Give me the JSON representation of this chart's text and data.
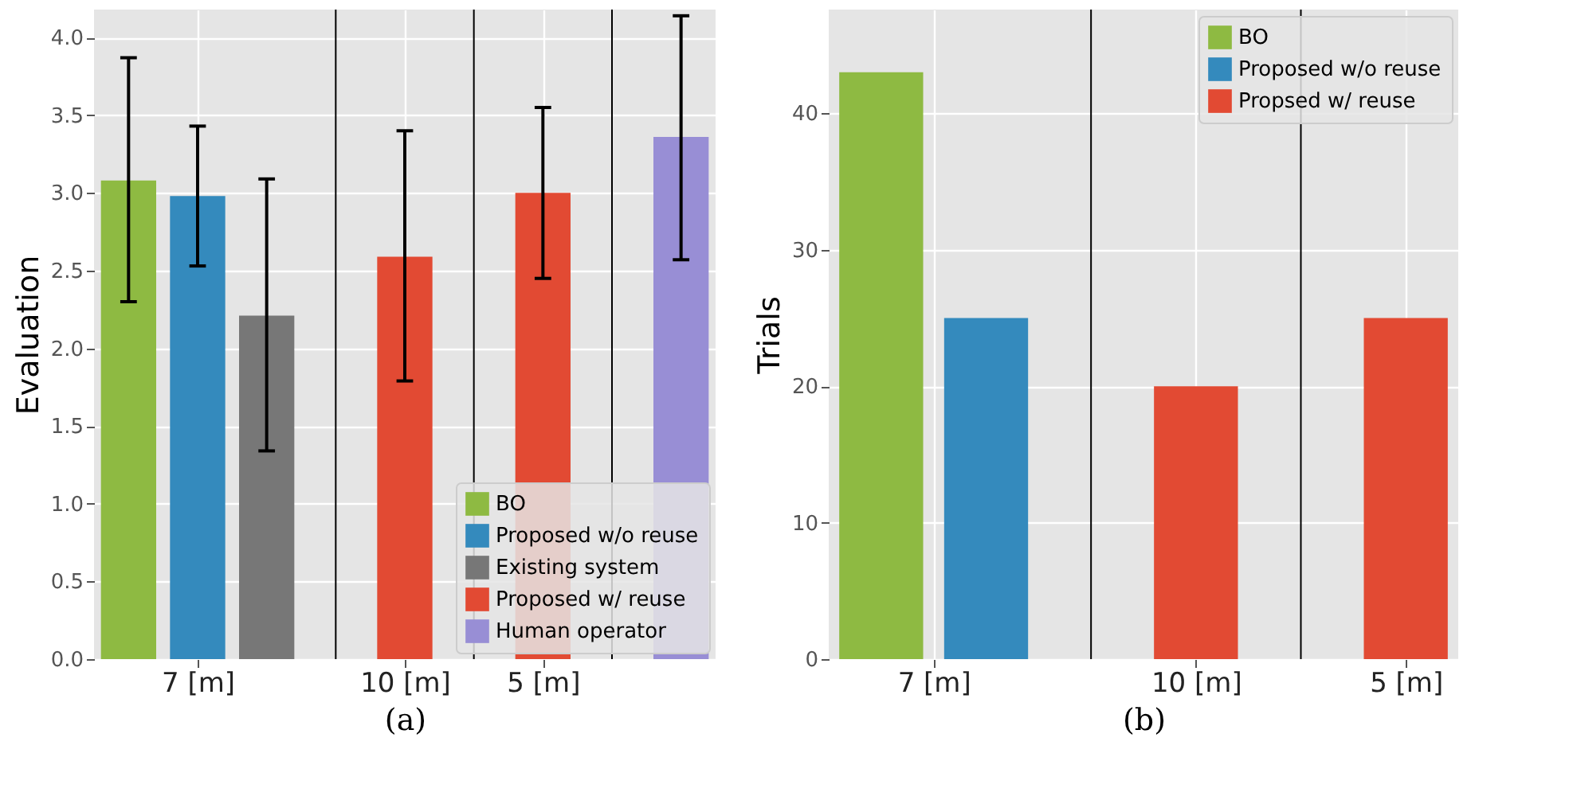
{
  "chart_data": [
    {
      "type": "bar",
      "xlabel": "(a)",
      "ylabel": "Evaluation",
      "ylim": [
        0,
        4.18
      ],
      "categories": [
        null,
        "7 [m]",
        null,
        null,
        "10 [m]",
        null,
        "5 [m]",
        null,
        null
      ],
      "yticks": [
        {
          "value": 0,
          "label": "0.0"
        },
        {
          "value": 0.5,
          "label": "0.5"
        },
        {
          "value": 1,
          "label": "1.0"
        },
        {
          "value": 1.5,
          "label": "1.5"
        },
        {
          "value": 2,
          "label": "2.0"
        },
        {
          "value": 2.5,
          "label": "2.5"
        },
        {
          "value": 3,
          "label": "3.0"
        },
        {
          "value": 3.5,
          "label": "3.5"
        },
        {
          "value": 4,
          "label": "4.0"
        }
      ],
      "grid": true,
      "legend": "bottom right",
      "series": [
        {
          "name": "BO",
          "color": "#8eba42",
          "values": [
            3.08,
            null,
            null,
            null,
            null,
            null,
            null,
            null,
            null
          ],
          "errors": [
            [
              2.3,
              3.87
            ],
            null,
            null,
            null,
            null,
            null,
            null,
            null,
            null
          ]
        },
        {
          "name": "Proposed w/o reuse",
          "color": "#348abd",
          "values": [
            null,
            2.98,
            null,
            null,
            null,
            null,
            null,
            null,
            null
          ],
          "errors": [
            null,
            [
              2.53,
              3.43
            ],
            null,
            null,
            null,
            null,
            null,
            null,
            null
          ]
        },
        {
          "name": "Existing system",
          "color": "#777777",
          "values": [
            null,
            null,
            2.21,
            null,
            null,
            null,
            null,
            null,
            null
          ],
          "errors": [
            null,
            null,
            [
              1.34,
              3.09
            ],
            null,
            null,
            null,
            null,
            null,
            null
          ]
        },
        {
          "name": "Proposed w/ reuse",
          "color": "#e24a33",
          "values": [
            null,
            null,
            null,
            null,
            2.59,
            null,
            3.0,
            null,
            null
          ],
          "errors": [
            null,
            null,
            null,
            null,
            [
              1.79,
              3.4
            ],
            null,
            [
              2.45,
              3.55
            ],
            null,
            null
          ]
        },
        {
          "name": "Human operator",
          "color": "#988ed5",
          "values": [
            null,
            null,
            null,
            null,
            null,
            null,
            null,
            null,
            3.36
          ],
          "errors": [
            null,
            null,
            null,
            null,
            null,
            null,
            null,
            null,
            [
              2.57,
              4.14
            ]
          ]
        }
      ]
    },
    {
      "type": "bar",
      "xlabel": "(b)",
      "ylabel": "Trials",
      "ylim": [
        0,
        47.6
      ],
      "categories": [
        null,
        "7 [m]",
        null,
        null,
        null,
        null,
        "10 [m]",
        null,
        null,
        null,
        "5 [m]"
      ],
      "yticks": [
        0,
        10,
        20,
        30,
        40
      ],
      "grid": true,
      "legend": "top right",
      "series": [
        {
          "name": "BO",
          "color": "#8eba42",
          "values": [
            43,
            null,
            null,
            null,
            null,
            null,
            null,
            null,
            null,
            null,
            null
          ]
        },
        {
          "name": "Proposed w/o reuse",
          "color": "#348abd",
          "values": [
            null,
            null,
            25,
            null,
            null,
            null,
            null,
            null,
            null,
            null,
            null
          ]
        },
        {
          "name": "Propsed w/ reuse",
          "color": "#e24a33",
          "values": [
            null,
            null,
            null,
            null,
            null,
            null,
            20,
            null,
            null,
            null,
            25
          ]
        }
      ]
    }
  ]
}
